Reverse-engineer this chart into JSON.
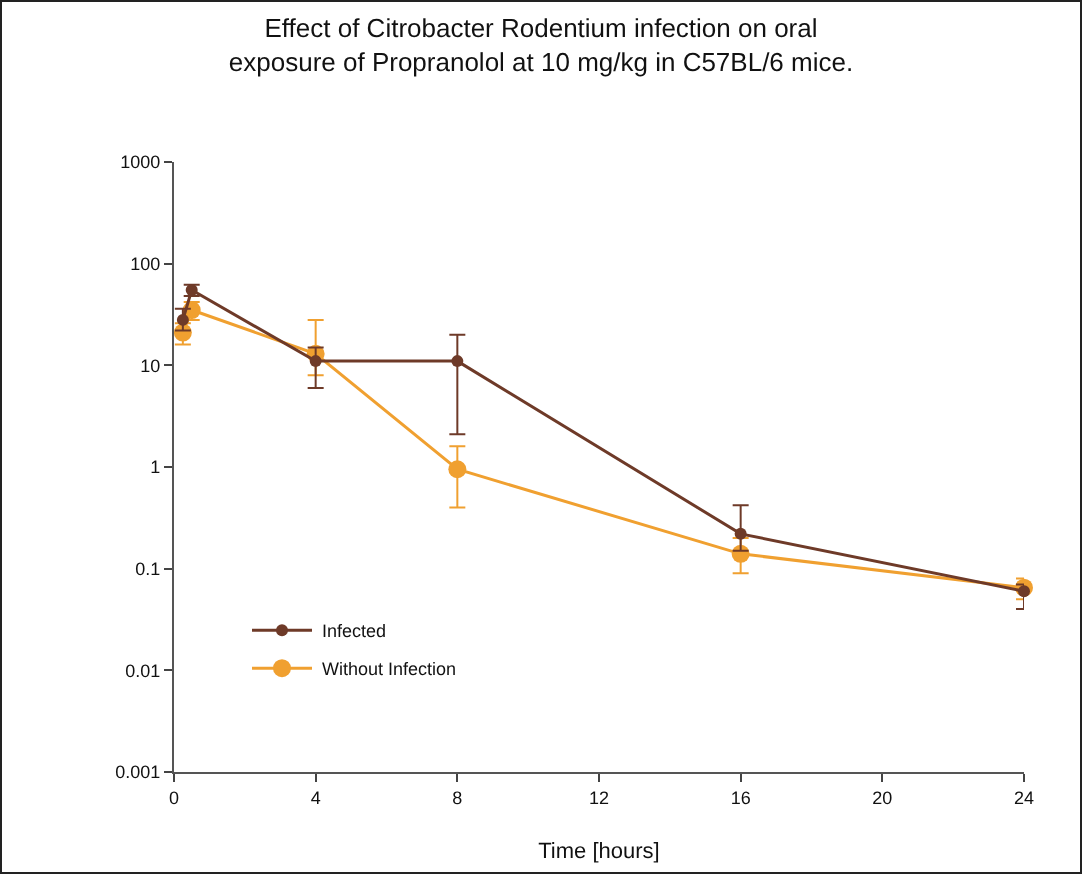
{
  "chart_data": {
    "type": "line",
    "title": "Effect of Citrobacter Rodentium infection on oral exposure of Propranolol at 10 mg/kg in C57BL/6 mice.",
    "xlabel": "Time [hours]",
    "x": [
      0.25,
      0.5,
      4,
      8,
      16,
      24
    ],
    "series": [
      {
        "name": "Infected",
        "color": "#6e3a28",
        "values": [
          28,
          55,
          11,
          11,
          0.22,
          0.06
        ],
        "errors": [
          [
            22,
            36
          ],
          [
            48,
            62
          ],
          [
            6,
            15
          ],
          [
            2.1,
            20
          ],
          [
            0.15,
            0.42
          ],
          [
            0.04,
            0.07
          ]
        ]
      },
      {
        "name": "Without Infection",
        "color": "#f0a030",
        "values": [
          21,
          35,
          13,
          0.95,
          0.14,
          0.065
        ],
        "errors": [
          [
            16,
            26
          ],
          [
            28,
            42
          ],
          [
            8,
            28
          ],
          [
            0.4,
            1.6
          ],
          [
            0.09,
            0.2
          ],
          [
            0.05,
            0.08
          ]
        ]
      }
    ],
    "xlim": [
      0,
      24
    ],
    "xticks": [
      0,
      4,
      8,
      12,
      16,
      20,
      24
    ],
    "ylim": [
      0.001,
      1000
    ],
    "yticks": [
      0.001,
      0.01,
      0.1,
      1,
      10,
      100,
      1000
    ],
    "log": "y",
    "grid": false,
    "legend": "bottom left",
    "marker": "circle",
    "line_style": "solid"
  }
}
